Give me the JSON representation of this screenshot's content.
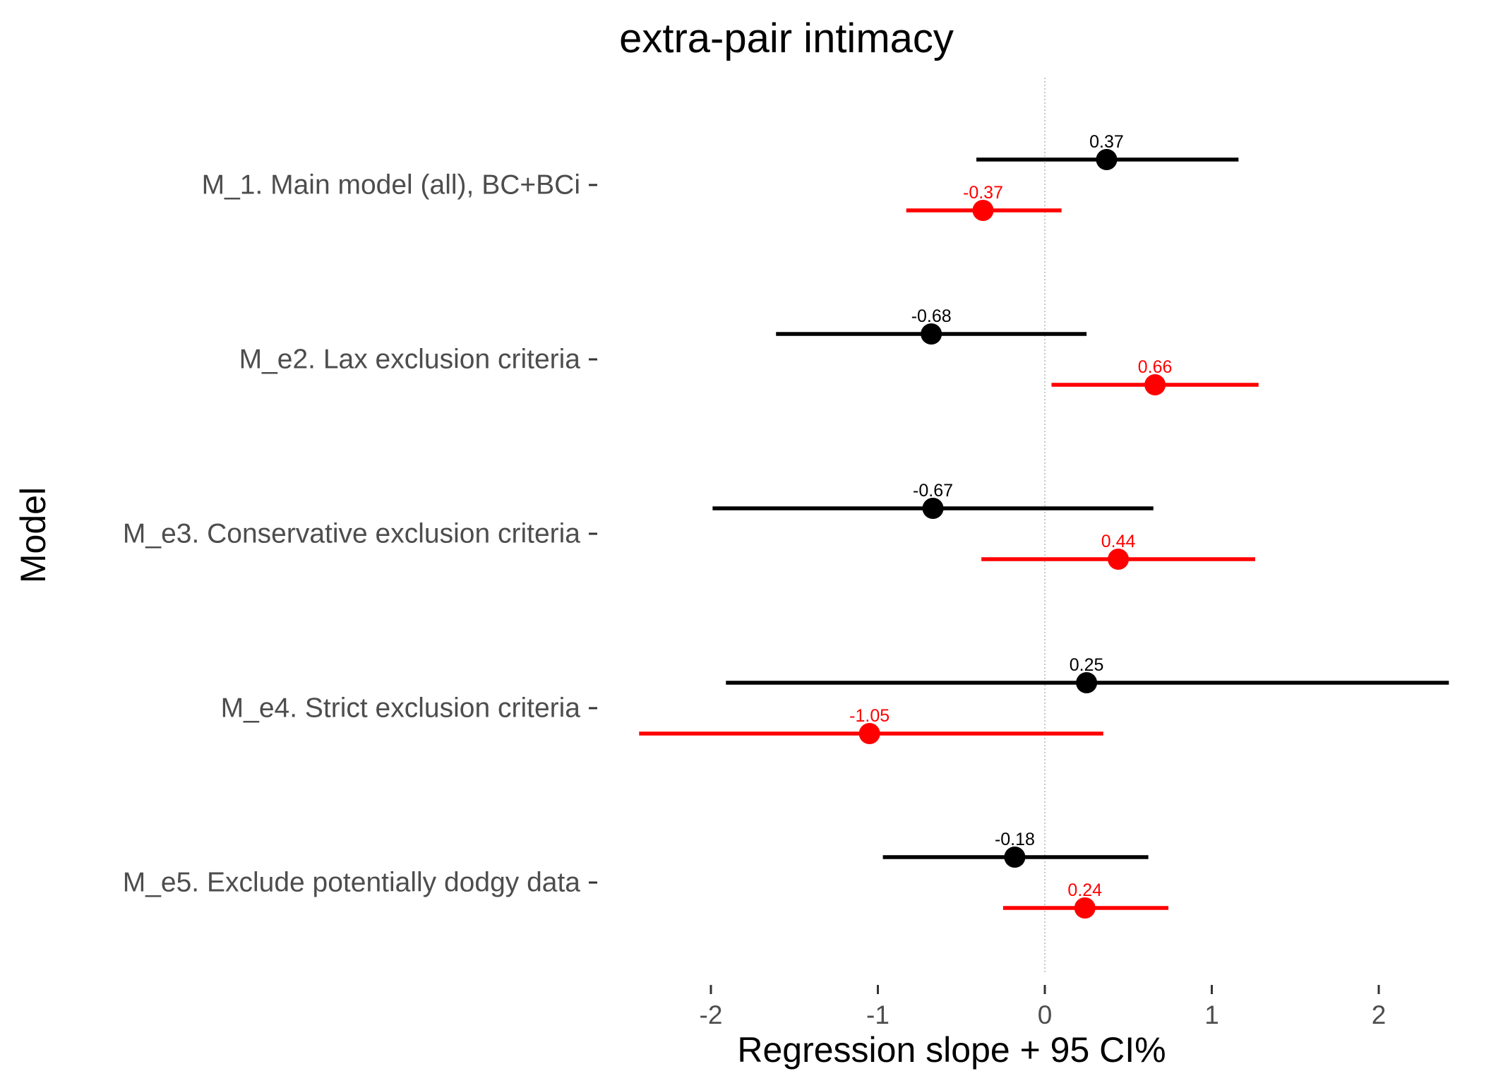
{
  "chart_data": {
    "type": "scatter",
    "subtype": "forest-plot",
    "title": "extra-pair intimacy",
    "xlabel": "Regression slope + 95 CI%",
    "ylabel": "Model",
    "xlim": [
      -2.5,
      2.5
    ],
    "x_ticks": [
      "-2",
      "-1",
      "0",
      "1",
      "2"
    ],
    "reference_line_x": 0,
    "grid": false,
    "legend": "none",
    "categories": [
      "M_1. Main model (all), BC+BCi",
      "M_e2. Lax exclusion criteria",
      "M_e3. Conservative exclusion criteria",
      "M_e4. Strict exclusion criteria",
      "M_e5. Exclude potentially dodgy data"
    ],
    "series": [
      {
        "color": "#000000",
        "estimates": [
          0.37,
          -0.68,
          -0.67,
          0.25,
          -0.18
        ],
        "labels": [
          "0.37",
          "-0.68",
          "-0.67",
          "0.25",
          "-0.18"
        ],
        "ci_low": [
          -0.41,
          -1.61,
          -1.99,
          -1.91,
          -0.97
        ],
        "ci_high": [
          1.16,
          0.25,
          0.65,
          2.42,
          0.62
        ]
      },
      {
        "color": "#ff0000",
        "estimates": [
          -0.37,
          0.66,
          0.44,
          -1.05,
          0.24
        ],
        "labels": [
          "-0.37",
          "0.66",
          "0.44",
          "-1.05",
          "0.24"
        ],
        "ci_low": [
          -0.83,
          0.04,
          -0.38,
          -2.43,
          -0.25
        ],
        "ci_high": [
          0.1,
          1.28,
          1.26,
          0.35,
          0.74
        ]
      }
    ]
  }
}
